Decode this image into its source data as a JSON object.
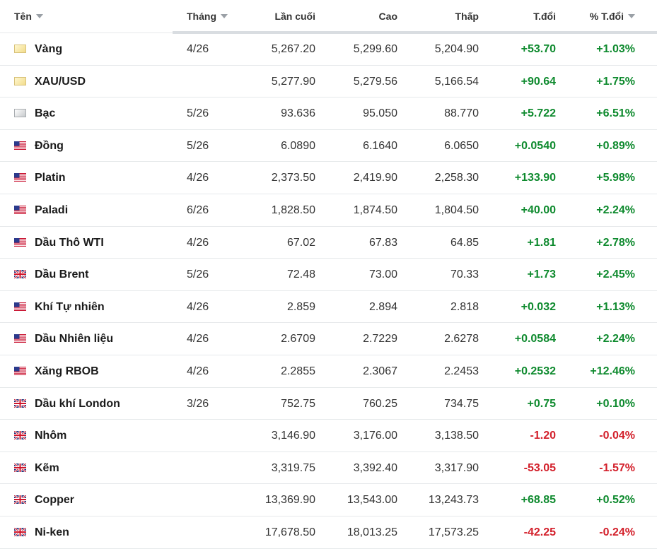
{
  "headers": {
    "name": "Tên",
    "month": "Tháng",
    "last": "Lần cuối",
    "high": "Cao",
    "low": "Thấp",
    "change": "T.đổi",
    "change_pct": "% T.đổi"
  },
  "rows": [
    {
      "name": "Vàng",
      "month": "4/26",
      "last": "5,267.20",
      "high": "5,299.60",
      "low": "5,204.90",
      "change": "+53.70",
      "change_pct": "+1.03%",
      "flag": "gold-icon",
      "trend": "pos"
    },
    {
      "name": "XAU/USD",
      "month": "",
      "last": "5,277.90",
      "high": "5,279.56",
      "low": "5,166.54",
      "change": "+90.64",
      "change_pct": "+1.75%",
      "flag": "gold-icon",
      "trend": "pos"
    },
    {
      "name": "Bạc",
      "month": "5/26",
      "last": "93.636",
      "high": "95.050",
      "low": "88.770",
      "change": "+5.722",
      "change_pct": "+6.51%",
      "flag": "silver-icon",
      "trend": "pos"
    },
    {
      "name": "Đồng",
      "month": "5/26",
      "last": "6.0890",
      "high": "6.1640",
      "low": "6.0650",
      "change": "+0.0540",
      "change_pct": "+0.89%",
      "flag": "us-flag-icon",
      "trend": "pos"
    },
    {
      "name": "Platin",
      "month": "4/26",
      "last": "2,373.50",
      "high": "2,419.90",
      "low": "2,258.30",
      "change": "+133.90",
      "change_pct": "+5.98%",
      "flag": "us-flag-icon",
      "trend": "pos"
    },
    {
      "name": "Paladi",
      "month": "6/26",
      "last": "1,828.50",
      "high": "1,874.50",
      "low": "1,804.50",
      "change": "+40.00",
      "change_pct": "+2.24%",
      "flag": "us-flag-icon",
      "trend": "pos"
    },
    {
      "name": "Dầu Thô WTI",
      "month": "4/26",
      "last": "67.02",
      "high": "67.83",
      "low": "64.85",
      "change": "+1.81",
      "change_pct": "+2.78%",
      "flag": "us-flag-icon",
      "trend": "pos"
    },
    {
      "name": "Dầu Brent",
      "month": "5/26",
      "last": "72.48",
      "high": "73.00",
      "low": "70.33",
      "change": "+1.73",
      "change_pct": "+2.45%",
      "flag": "uk-flag-icon",
      "trend": "pos"
    },
    {
      "name": "Khí Tự nhiên",
      "month": "4/26",
      "last": "2.859",
      "high": "2.894",
      "low": "2.818",
      "change": "+0.032",
      "change_pct": "+1.13%",
      "flag": "us-flag-icon",
      "trend": "pos"
    },
    {
      "name": "Dầu Nhiên liệu",
      "month": "4/26",
      "last": "2.6709",
      "high": "2.7229",
      "low": "2.6278",
      "change": "+0.0584",
      "change_pct": "+2.24%",
      "flag": "us-flag-icon",
      "trend": "pos"
    },
    {
      "name": "Xăng RBOB",
      "month": "4/26",
      "last": "2.2855",
      "high": "2.3067",
      "low": "2.2453",
      "change": "+0.2532",
      "change_pct": "+12.46%",
      "flag": "us-flag-icon",
      "trend": "pos"
    },
    {
      "name": "Dầu khí London",
      "month": "3/26",
      "last": "752.75",
      "high": "760.25",
      "low": "734.75",
      "change": "+0.75",
      "change_pct": "+0.10%",
      "flag": "uk-flag-icon",
      "trend": "pos"
    },
    {
      "name": "Nhôm",
      "month": "",
      "last": "3,146.90",
      "high": "3,176.00",
      "low": "3,138.50",
      "change": "-1.20",
      "change_pct": "-0.04%",
      "flag": "uk-flag-icon",
      "trend": "neg"
    },
    {
      "name": "Kẽm",
      "month": "",
      "last": "3,319.75",
      "high": "3,392.40",
      "low": "3,317.90",
      "change": "-53.05",
      "change_pct": "-1.57%",
      "flag": "uk-flag-icon",
      "trend": "neg"
    },
    {
      "name": "Copper",
      "month": "",
      "last": "13,369.90",
      "high": "13,543.00",
      "low": "13,243.73",
      "change": "+68.85",
      "change_pct": "+0.52%",
      "flag": "uk-flag-icon",
      "trend": "pos"
    },
    {
      "name": "Ni-ken",
      "month": "",
      "last": "17,678.50",
      "high": "18,013.25",
      "low": "17,573.25",
      "change": "-42.25",
      "change_pct": "-0.24%",
      "flag": "uk-flag-icon",
      "trend": "neg"
    }
  ],
  "colors": {
    "positive": "#0e8a2e",
    "negative": "#d3202b"
  }
}
